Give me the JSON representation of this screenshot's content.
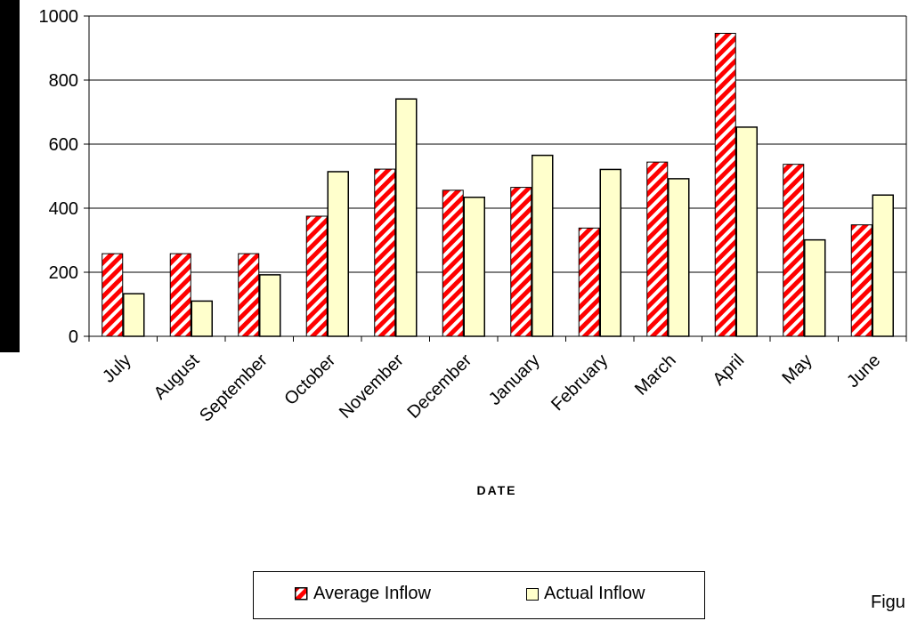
{
  "chart_data": {
    "type": "bar",
    "xlabel": "DATE",
    "ylabel": "",
    "ylim": [
      0,
      1000
    ],
    "yticks": [
      0,
      200,
      400,
      600,
      800,
      1000
    ],
    "grid": true,
    "legend_position": "bottom",
    "categories": [
      "July",
      "August",
      "September",
      "October",
      "November",
      "December",
      "January",
      "February",
      "March",
      "April",
      "May",
      "June"
    ],
    "series": [
      {
        "name": "Average Inflow",
        "pattern": "diagonal-stripes",
        "color": "#ff0000",
        "values": [
          258,
          258,
          258,
          375,
          522,
          456,
          465,
          338,
          544,
          946,
          537,
          348
        ]
      },
      {
        "name": "Actual Inflow",
        "color": "#ffffcc",
        "values": [
          133,
          110,
          192,
          514,
          741,
          434,
          565,
          521,
          492,
          653,
          301,
          441
        ]
      }
    ]
  },
  "colors": {
    "average_stripe": "#ff0000",
    "actual_fill": "#ffffcc"
  },
  "figure_label": "Figu"
}
